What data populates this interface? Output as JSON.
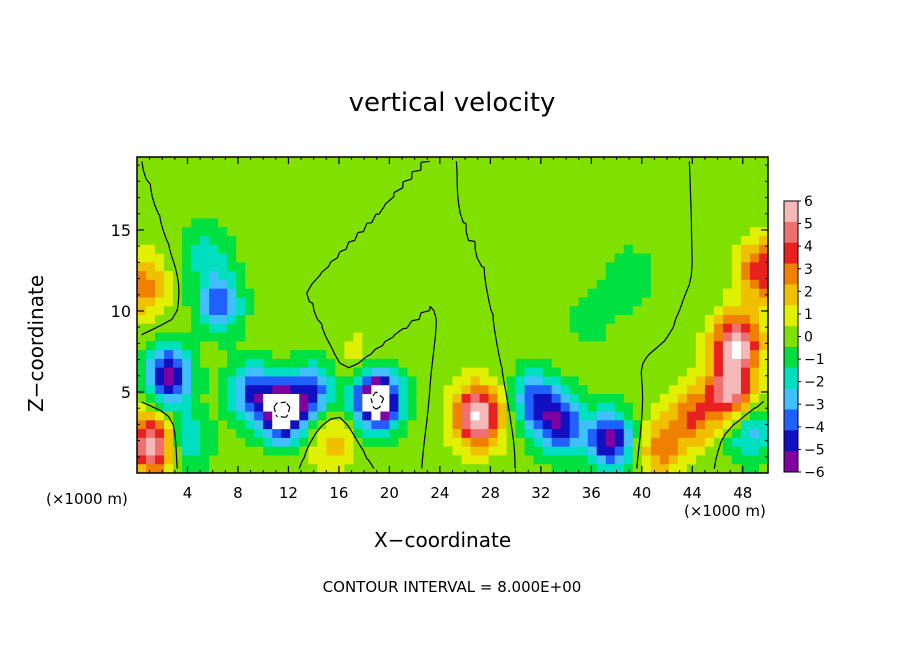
{
  "chart_data": {
    "type": "heatmap",
    "title": "vertical velocity",
    "xlabel": "X−coordinate",
    "ylabel": "Z−coordinate",
    "x_unit_left": "(×1000 m)",
    "x_unit_right": "(×1000 m)",
    "footer": "CONTOUR INTERVAL = 8.000E+00",
    "xlim": [
      0,
      50
    ],
    "ylim": [
      0,
      19.5
    ],
    "x_ticks": [
      4,
      8,
      12,
      16,
      20,
      24,
      28,
      32,
      36,
      40,
      44,
      48
    ],
    "y_ticks": [
      5,
      10,
      15
    ],
    "colorbar": {
      "ticks": [
        6,
        5,
        4,
        3,
        2,
        1,
        0,
        -1,
        -2,
        -3,
        -4,
        -5,
        -6
      ],
      "tick_labels": [
        "6",
        "5",
        "4",
        "3",
        "2",
        "1",
        "0",
        "−1",
        "−2",
        "−3",
        "−4",
        "−5",
        "−6"
      ],
      "colors": [
        "#f4b8b8",
        "#f07070",
        "#e82020",
        "#f08000",
        "#f0c000",
        "#e0f000",
        "#80e000",
        "#00e040",
        "#00e0c0",
        "#40c0ff",
        "#2060ff",
        "#1010c0",
        "#8000a0"
      ],
      "over_color": "#ffffff",
      "under_color": "#ffffff"
    },
    "contour_levels": [
      -8,
      0,
      8
    ],
    "features": [
      {
        "x": 27,
        "z": 3.5,
        "w": 7.0
      },
      {
        "x": 47.5,
        "z": 8.0,
        "w": 6.5
      },
      {
        "x": 47.0,
        "z": 5.0,
        "w": 6.0
      },
      {
        "x": 44.0,
        "z": 3.5,
        "w": 3.5
      },
      {
        "x": 49.5,
        "z": 12.5,
        "w": 4.5
      },
      {
        "x": 41.5,
        "z": 1.5,
        "w": 3.0
      },
      {
        "x": 1.3,
        "z": 1.8,
        "w": 6.5
      },
      {
        "x": 0.5,
        "z": 11.5,
        "w": 3.0
      },
      {
        "x": 33.5,
        "z": 3.0,
        "w": 1.8
      },
      {
        "x": 15.5,
        "z": 2.0,
        "w": 2.0
      },
      {
        "x": 17.5,
        "z": 7.0,
        "w": 1.0
      },
      {
        "x": 2.5,
        "z": 6.0,
        "w": -6.0
      },
      {
        "x": 6.5,
        "z": 10.5,
        "w": -4.0
      },
      {
        "x": 5.5,
        "z": 13.5,
        "w": -2.0
      },
      {
        "x": 11.5,
        "z": 3.8,
        "w": -8.0
      },
      {
        "x": 19,
        "z": 4.5,
        "w": -9.0
      },
      {
        "x": 33.5,
        "z": 3.0,
        "w": -7.0
      },
      {
        "x": 37.5,
        "z": 2.0,
        "w": -6.0
      },
      {
        "x": 31.5,
        "z": 4.5,
        "w": -4.0
      },
      {
        "x": 9,
        "z": 5.0,
        "w": -4.0
      },
      {
        "x": 14,
        "z": 5.0,
        "w": -4.0
      },
      {
        "x": 39,
        "z": 12.0,
        "w": -1.5
      },
      {
        "x": 36,
        "z": 9.5,
        "w": -1.0
      },
      {
        "x": 3.8,
        "z": 2.0,
        "w": -3.0
      },
      {
        "x": 48.5,
        "z": 2.5,
        "w": -3.0
      },
      {
        "x": 10,
        "z": 16.0,
        "w": -0.5
      }
    ]
  }
}
